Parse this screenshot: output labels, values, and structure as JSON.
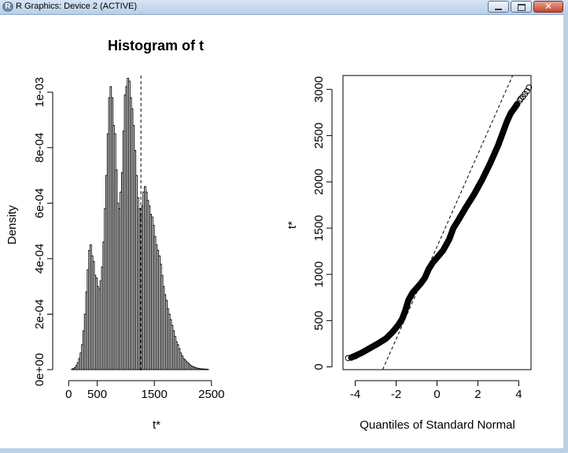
{
  "window": {
    "title": "R Graphics: Device 2 (ACTIVE)",
    "icon_letter": "R",
    "buttons": [
      "minimize-icon",
      "maximize-icon",
      "close-icon"
    ],
    "close_glyph": "✕"
  },
  "chart_data": [
    {
      "type": "bar",
      "title": "Histogram of t",
      "xlabel": "t*",
      "ylabel": "Density",
      "xlim": [
        -100,
        3150
      ],
      "ylim": [
        0,
        0.00106
      ],
      "x_ticks": [
        0,
        500,
        1500,
        2500
      ],
      "x_tick_labels": [
        "0",
        "500",
        "1500",
        "2500"
      ],
      "y_ticks": [
        0,
        0.0002,
        0.0004,
        0.0006,
        0.0008,
        0.001
      ],
      "y_tick_labels": [
        "0e+00",
        "2e-04",
        "4e-04",
        "6e-04",
        "8e-04",
        "1e-03"
      ],
      "bin_width": 25,
      "bins_start": 50,
      "density": [
        2e-06,
        4e-06,
        8e-06,
        1.5e-05,
        2.5e-05,
        4e-05,
        6e-05,
        9e-05,
        0.00014,
        0.0002,
        0.00028,
        0.00036,
        0.00043,
        0.00045,
        0.00041,
        0.00039,
        0.00034,
        0.00033,
        0.0003,
        0.00029,
        0.00032,
        0.00037,
        0.00046,
        0.00058,
        0.0007,
        0.00085,
        0.00098,
        0.00102,
        0.00098,
        0.00088,
        0.00085,
        0.00072,
        0.0006,
        0.00058,
        0.00064,
        0.00071,
        0.00086,
        0.00099,
        0.00102,
        0.00105,
        0.00104,
        0.00098,
        0.00094,
        0.00088,
        0.00079,
        0.0007,
        0.00062,
        0.00058,
        0.00055,
        0.00059,
        0.00064,
        0.00066,
        0.00064,
        0.00061,
        0.00059,
        0.00056,
        0.00055,
        0.00052,
        0.00048,
        0.00045,
        0.00043,
        0.00041,
        0.00038,
        0.00034,
        0.0003,
        0.00027,
        0.00025,
        0.00022,
        0.0002,
        0.00018,
        0.00016,
        0.00014,
        0.00012,
        0.0001,
        9e-05,
        7.5e-05,
        6e-05,
        5e-05,
        4e-05,
        3.5e-05,
        3e-05,
        2.5e-05,
        2e-05,
        1.5e-05,
        1.2e-05,
        1e-05,
        8e-06,
        6e-06,
        5e-06,
        4e-06,
        3e-06,
        3e-06,
        2e-06,
        2e-06,
        2e-06,
        1e-06
      ],
      "reference_line_x": 1265,
      "reference_line_style": "dashed"
    },
    {
      "type": "scatter",
      "title": "",
      "xlabel": "Quantiles of Standard Normal",
      "ylabel": "t*",
      "xlim": [
        -4.6,
        4.6
      ],
      "ylim": [
        -30,
        3150
      ],
      "x_ticks": [
        -4,
        -2,
        0,
        2,
        4
      ],
      "x_tick_labels": [
        "-4",
        "-2",
        "0",
        "2",
        "4"
      ],
      "y_ticks": [
        0,
        500,
        1000,
        1500,
        2000,
        2500,
        3000
      ],
      "y_tick_labels": [
        "0",
        "500",
        "1000",
        "1500",
        "2000",
        "2500",
        "3000"
      ],
      "curve_points": [
        [
          -4.2,
          100
        ],
        [
          -3.7,
          150
        ],
        [
          -3.3,
          200
        ],
        [
          -2.9,
          250
        ],
        [
          -2.5,
          305
        ],
        [
          -2.2,
          370
        ],
        [
          -1.9,
          450
        ],
        [
          -1.7,
          520
        ],
        [
          -1.55,
          610
        ],
        [
          -1.4,
          720
        ],
        [
          -1.2,
          800
        ],
        [
          -1.0,
          850
        ],
        [
          -0.8,
          900
        ],
        [
          -0.6,
          960
        ],
        [
          -0.4,
          1060
        ],
        [
          -0.2,
          1130
        ],
        [
          0.0,
          1180
        ],
        [
          0.3,
          1260
        ],
        [
          0.6,
          1380
        ],
        [
          0.8,
          1500
        ],
        [
          1.0,
          1570
        ],
        [
          1.4,
          1720
        ],
        [
          1.8,
          1860
        ],
        [
          2.2,
          2020
        ],
        [
          2.6,
          2200
        ],
        [
          3.0,
          2400
        ],
        [
          3.2,
          2520
        ],
        [
          3.4,
          2640
        ],
        [
          3.6,
          2740
        ],
        [
          3.8,
          2800
        ],
        [
          3.95,
          2850
        ]
      ],
      "outlier_points": [
        [
          4.05,
          2880
        ],
        [
          4.1,
          2900
        ],
        [
          4.2,
          2920
        ],
        [
          4.3,
          2950
        ],
        [
          4.4,
          2980
        ],
        [
          4.5,
          3020
        ],
        [
          -4.0,
          115
        ],
        [
          -4.2,
          100
        ],
        [
          -4.35,
          95
        ],
        [
          -3.85,
          135
        ]
      ],
      "reference_line": {
        "intercept": 1300,
        "slope": 500,
        "style": "dashed"
      }
    }
  ]
}
